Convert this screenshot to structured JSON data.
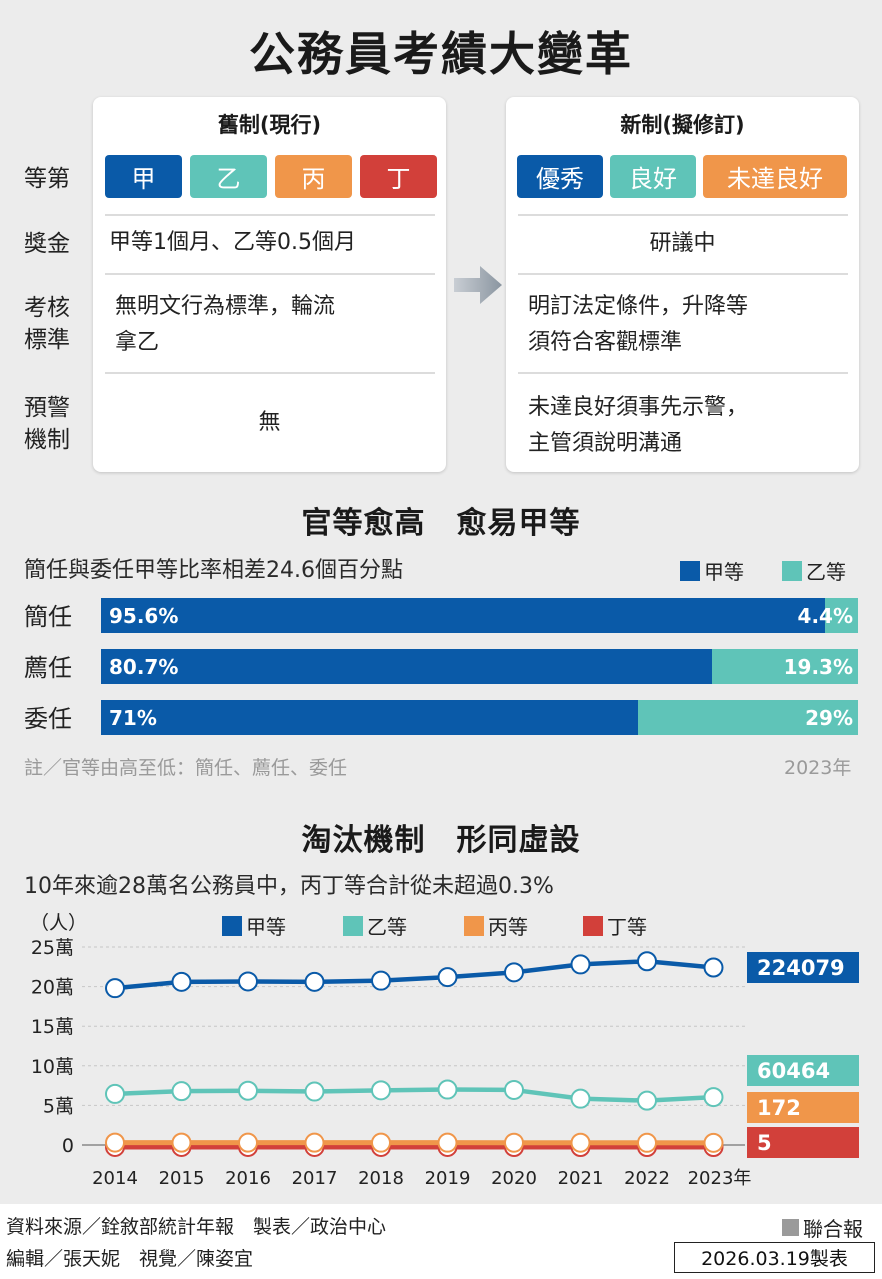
{
  "title": "公務員考績大變革",
  "compare": {
    "old_header": "舊制(現行)",
    "new_header": "新制(擬修訂)",
    "rows": {
      "grade": "等第",
      "bonus": "獎金",
      "criteria": [
        "考核",
        "標準"
      ],
      "warning": [
        "預警",
        "機制"
      ]
    },
    "old": {
      "grades": [
        "甲",
        "乙",
        "丙",
        "丁"
      ],
      "bonus": "甲等1個月、乙等0.5個月",
      "criteria": [
        "無明文行為標準，輪流",
        "拿乙"
      ],
      "warning": "無"
    },
    "new": {
      "grades": [
        "優秀",
        "良好",
        "未達良好"
      ],
      "bonus": "研議中",
      "criteria": [
        "明訂法定條件，升降等",
        "須符合客觀標準"
      ],
      "warning": [
        "未達良好須事先示警，",
        "主管須說明溝通"
      ]
    }
  },
  "section1": {
    "title": "官等愈高　愈易甲等",
    "subtitle": "簡任與委任甲等比率相差24.6個百分點",
    "note": "註／官等由高至低：簡任、薦任、委任",
    "year": "2023年"
  },
  "section2": {
    "title": "淘汰機制　形同虛設",
    "subtitle": "10年來逾28萬名公務員中，丙丁等合計從未超過0.3%",
    "unit": "（人）"
  },
  "colors": {
    "a": "#0a5aa8",
    "b": "#5fc4b8",
    "c": "#f0964a",
    "d": "#d2403a"
  },
  "chart_data": [
    {
      "type": "bar",
      "orientation": "horizontal-stacked",
      "categories": [
        "簡任",
        "薦任",
        "委任"
      ],
      "series": [
        {
          "name": "甲等",
          "values": [
            95.6,
            80.7,
            71
          ],
          "labels": [
            "95.6%",
            "80.7%",
            "71%"
          ]
        },
        {
          "name": "乙等",
          "values": [
            4.4,
            19.3,
            29
          ],
          "labels": [
            "4.4%",
            "19.3%",
            "29%"
          ]
        }
      ],
      "unit": "%",
      "xlim": [
        0,
        100
      ]
    },
    {
      "type": "line",
      "x": [
        "2014",
        "2015",
        "2016",
        "2017",
        "2018",
        "2019",
        "2020",
        "2021",
        "2022",
        "2023年"
      ],
      "series": [
        {
          "name": "甲等",
          "values": [
            198000,
            206000,
            206500,
            206000,
            207500,
            212000,
            218000,
            228000,
            232000,
            224079
          ]
        },
        {
          "name": "乙等",
          "values": [
            64500,
            68000,
            68500,
            67500,
            69000,
            70000,
            69500,
            58500,
            56000,
            60464
          ]
        },
        {
          "name": "丙等",
          "values": [
            500,
            480,
            460,
            450,
            430,
            410,
            380,
            330,
            250,
            172
          ]
        },
        {
          "name": "丁等",
          "values": [
            20,
            18,
            16,
            15,
            14,
            12,
            10,
            8,
            6,
            5
          ]
        }
      ],
      "end_labels": [
        "224079",
        "60464",
        "172",
        "5"
      ],
      "yticks": [
        "0",
        "5萬",
        "10萬",
        "15萬",
        "20萬",
        "25萬"
      ],
      "ylim": [
        0,
        250000
      ],
      "ylabel": "（人）"
    }
  ],
  "footer": {
    "source": "資料來源／銓敘部統計年報　製表／政治中心",
    "editor": "編輯／張天妮　視覺／陳姿宜",
    "brand": "聯合報",
    "date": "2026.03.19製表"
  }
}
